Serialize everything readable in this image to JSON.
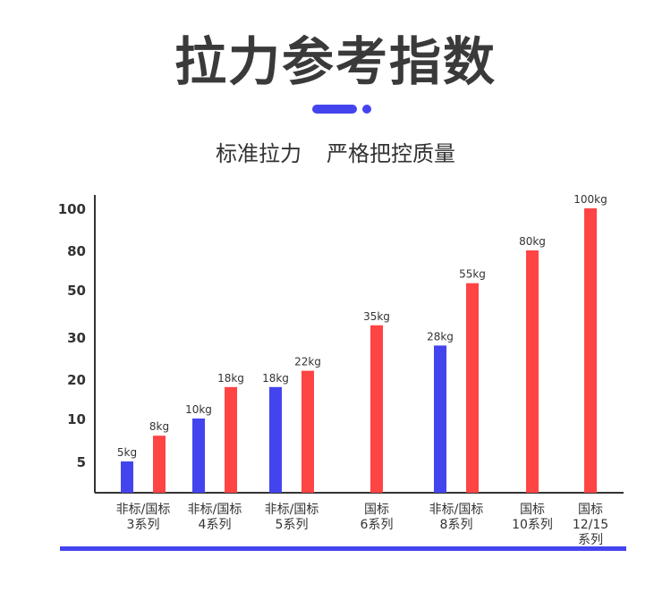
{
  "header": {
    "title": "拉力参考指数",
    "subtitle_left": "标准拉力",
    "subtitle_right": "严格把控质量"
  },
  "colors": {
    "blue": "#4444ee",
    "red": "#ff4444",
    "axis": "#333333"
  },
  "chart_data": {
    "type": "bar",
    "y_ticks": [
      "5",
      "10",
      "20",
      "30",
      "50",
      "80",
      "100"
    ],
    "groups": [
      {
        "label_lines": [
          "非标/国标",
          "3系列"
        ],
        "bars": [
          {
            "color": "blue",
            "value": 5,
            "label": "5kg"
          },
          {
            "color": "red",
            "value": 8,
            "label": "8kg"
          }
        ]
      },
      {
        "label_lines": [
          "非标/国标",
          "4系列"
        ],
        "bars": [
          {
            "color": "blue",
            "value": 10,
            "label": "10kg"
          },
          {
            "color": "red",
            "value": 18,
            "label": "18kg"
          }
        ]
      },
      {
        "label_lines": [
          "非标/国标",
          "5系列"
        ],
        "bars": [
          {
            "color": "blue",
            "value": 18,
            "label": "18kg"
          },
          {
            "color": "red",
            "value": 22,
            "label": "22kg"
          }
        ]
      },
      {
        "label_lines": [
          "国标",
          "6系列"
        ],
        "bars": [
          {
            "color": "red",
            "value": 35,
            "label": "35kg"
          }
        ]
      },
      {
        "label_lines": [
          "非标/国标",
          "8系列"
        ],
        "bars": [
          {
            "color": "blue",
            "value": 28,
            "label": "28kg"
          },
          {
            "color": "red",
            "value": 55,
            "label": "55kg"
          }
        ]
      },
      {
        "label_lines": [
          "国标",
          "10系列"
        ],
        "bars": [
          {
            "color": "red",
            "value": 80,
            "label": "80kg"
          }
        ]
      },
      {
        "label_lines": [
          "国标",
          "12/15",
          "系列"
        ],
        "bars": [
          {
            "color": "red",
            "value": 100,
            "label": "100kg"
          }
        ]
      }
    ]
  }
}
